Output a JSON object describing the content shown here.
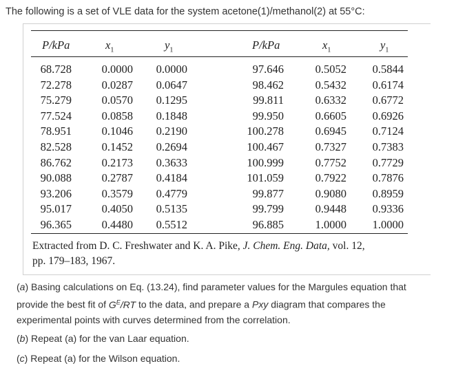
{
  "intro": "The following is a set of VLE data for the system acetone(1)/methanol(2) at 55°C:",
  "headers": [
    "P/kPa",
    "x",
    "y",
    "P/kPa",
    "x",
    "y"
  ],
  "left_rows": [
    [
      "68.728",
      "0.0000",
      "0.0000"
    ],
    [
      "72.278",
      "0.0287",
      "0.0647"
    ],
    [
      "75.279",
      "0.0570",
      "0.1295"
    ],
    [
      "77.524",
      "0.0858",
      "0.1848"
    ],
    [
      "78.951",
      "0.1046",
      "0.2190"
    ],
    [
      "82.528",
      "0.1452",
      "0.2694"
    ],
    [
      "86.762",
      "0.2173",
      "0.3633"
    ],
    [
      "90.088",
      "0.2787",
      "0.4184"
    ],
    [
      "93.206",
      "0.3579",
      "0.4779"
    ],
    [
      "95.017",
      "0.4050",
      "0.5135"
    ],
    [
      "96.365",
      "0.4480",
      "0.5512"
    ]
  ],
  "right_rows": [
    [
      "97.646",
      "0.5052",
      "0.5844"
    ],
    [
      "98.462",
      "0.5432",
      "0.6174"
    ],
    [
      "99.811",
      "0.6332",
      "0.6772"
    ],
    [
      "99.950",
      "0.6605",
      "0.6926"
    ],
    [
      "100.278",
      "0.6945",
      "0.7124"
    ],
    [
      "100.467",
      "0.7327",
      "0.7383"
    ],
    [
      "100.999",
      "0.7752",
      "0.7729"
    ],
    [
      "101.059",
      "0.7922",
      "0.7876"
    ],
    [
      "99.877",
      "0.9080",
      "0.8959"
    ],
    [
      "99.799",
      "0.9448",
      "0.9336"
    ],
    [
      "96.885",
      "1.0000",
      "1.0000"
    ]
  ],
  "footnote": {
    "prefix": "Extracted from D. C. Freshwater and K. A. Pike, ",
    "journal": "J. Chem. Eng. Data,",
    "suffix": " vol. 12,",
    "line2": "pp. 179–183, 1967."
  },
  "questions": {
    "a": {
      "label": "a",
      "text1": " Basing calculations on Eq. (13.24), find parameter values for the Margules equation that",
      "text2": "provide the best fit of ",
      "gert": "G",
      "gert_sup": "E",
      "gert_rest": "/RT",
      "text3": " to the data, and prepare a ",
      "pxy": "Pxy",
      "text4": " diagram that compares the",
      "text5": "experimental points with curves determined from the correlation."
    },
    "b": {
      "label": "b",
      "text": " Repeat (a) for the van Laar equation."
    },
    "c": {
      "label": "c",
      "text": " Repeat (a) for the Wilson equation."
    }
  }
}
